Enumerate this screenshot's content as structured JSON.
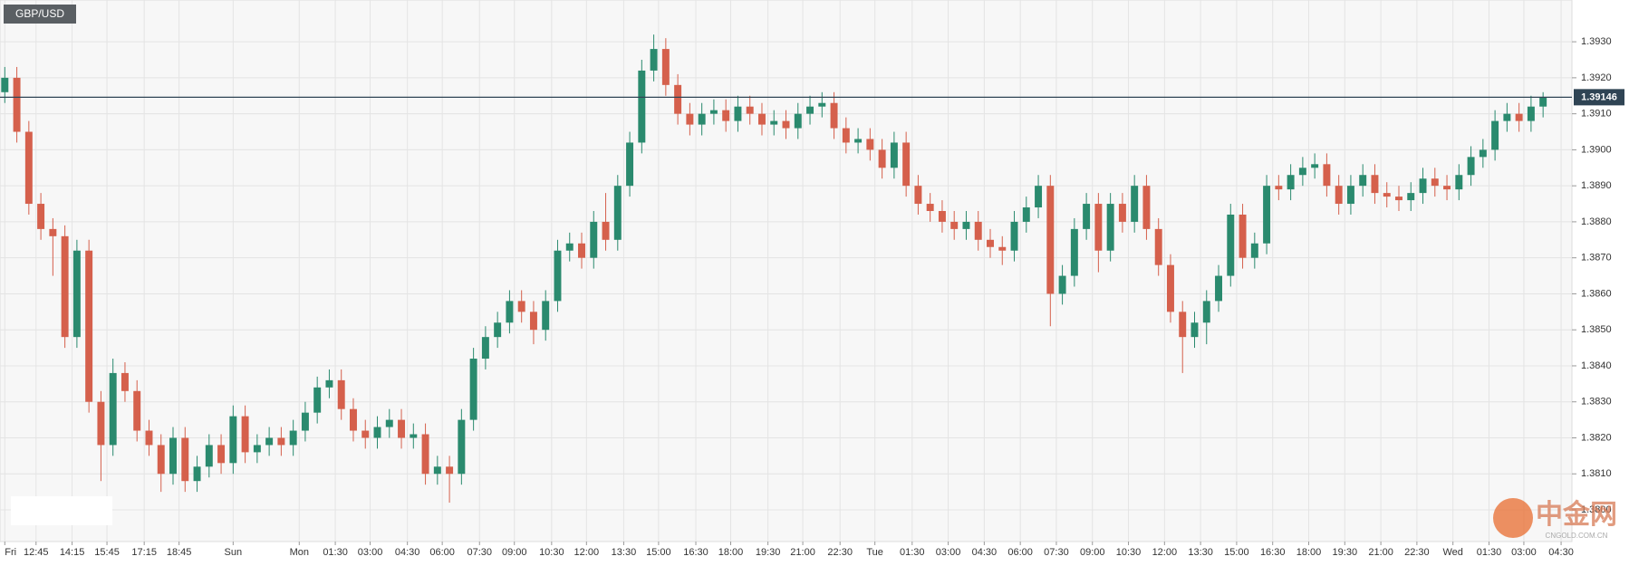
{
  "chart_data": {
    "type": "candlestick",
    "title": "GBP/USD",
    "watermark": {
      "name": "中金网",
      "sub": "CNGOLD.COM.CN"
    },
    "up_color": "#2a8a6e",
    "down_color": "#d5604c",
    "last_price": 1.39146,
    "last_price_color": "#2f4454",
    "grid": true,
    "ylim": [
      1.37912,
      1.39416
    ],
    "yticks": [
      {
        "value": 1.38,
        "label": "1.3800"
      },
      {
        "value": 1.381,
        "label": "1.3810"
      },
      {
        "value": 1.382,
        "label": "1.3820"
      },
      {
        "value": 1.383,
        "label": "1.3830"
      },
      {
        "value": 1.384,
        "label": "1.3840"
      },
      {
        "value": 1.385,
        "label": "1.3850"
      },
      {
        "value": 1.386,
        "label": "1.3860"
      },
      {
        "value": 1.387,
        "label": "1.3870"
      },
      {
        "value": 1.388,
        "label": "1.3880"
      },
      {
        "value": 1.389,
        "label": "1.3890"
      },
      {
        "value": 1.39,
        "label": "1.3900"
      },
      {
        "value": 1.391,
        "label": "1.3910"
      },
      {
        "value": 1.392,
        "label": "1.3920"
      },
      {
        "value": 1.393,
        "label": "1.3930"
      }
    ],
    "xlim": [
      -0.4,
      130.4
    ],
    "xticks": [
      {
        "value": 0,
        "label": "Fri"
      },
      {
        "value": 2.6,
        "label": "12:45"
      },
      {
        "value": 5.6,
        "label": "14:15"
      },
      {
        "value": 8.5,
        "label": "15:45"
      },
      {
        "value": 11.6,
        "label": "17:15"
      },
      {
        "value": 14.5,
        "label": "18:45"
      },
      {
        "value": 19,
        "label": "Sun"
      },
      {
        "value": 24.5,
        "label": "Mon"
      },
      {
        "value": 27.5,
        "label": "01:30"
      },
      {
        "value": 30.4,
        "label": "03:00"
      },
      {
        "value": 33.5,
        "label": "04:30"
      },
      {
        "value": 36.4,
        "label": "06:00"
      },
      {
        "value": 39.5,
        "label": "07:30"
      },
      {
        "value": 42.4,
        "label": "09:00"
      },
      {
        "value": 45.5,
        "label": "10:30"
      },
      {
        "value": 48.4,
        "label": "12:00"
      },
      {
        "value": 51.5,
        "label": "13:30"
      },
      {
        "value": 54.4,
        "label": "15:00"
      },
      {
        "value": 57.5,
        "label": "16:30"
      },
      {
        "value": 60.4,
        "label": "18:00"
      },
      {
        "value": 63.5,
        "label": "19:30"
      },
      {
        "value": 66.4,
        "label": "21:00"
      },
      {
        "value": 69.5,
        "label": "22:30"
      },
      {
        "value": 72.4,
        "label": "Tue"
      },
      {
        "value": 75.5,
        "label": "01:30"
      },
      {
        "value": 78.5,
        "label": "03:00"
      },
      {
        "value": 81.5,
        "label": "04:30"
      },
      {
        "value": 84.5,
        "label": "06:00"
      },
      {
        "value": 87.5,
        "label": "07:30"
      },
      {
        "value": 90.5,
        "label": "09:00"
      },
      {
        "value": 93.5,
        "label": "10:30"
      },
      {
        "value": 96.5,
        "label": "12:00"
      },
      {
        "value": 99.5,
        "label": "13:30"
      },
      {
        "value": 102.5,
        "label": "15:00"
      },
      {
        "value": 105.5,
        "label": "16:30"
      },
      {
        "value": 108.5,
        "label": "18:00"
      },
      {
        "value": 111.5,
        "label": "19:30"
      },
      {
        "value": 114.5,
        "label": "21:00"
      },
      {
        "value": 117.5,
        "label": "22:30"
      },
      {
        "value": 120.5,
        "label": "Wed"
      },
      {
        "value": 123.5,
        "label": "01:30"
      },
      {
        "value": 126.4,
        "label": "03:00"
      },
      {
        "value": 129.5,
        "label": "04:30"
      }
    ],
    "open": [
      1.3916,
      1.392,
      1.3905,
      1.3885,
      1.3878,
      1.3876,
      1.3848,
      1.3872,
      1.383,
      1.3818,
      1.3838,
      1.3833,
      1.3822,
      1.3818,
      1.381,
      1.382,
      1.3808,
      1.3812,
      1.3818,
      1.3813,
      1.3826,
      1.3816,
      1.3818,
      1.382,
      1.3818,
      1.3822,
      1.3827,
      1.3834,
      1.3836,
      1.3828,
      1.3822,
      1.382,
      1.3823,
      1.3825,
      1.382,
      1.3821,
      1.381,
      1.3812,
      1.381,
      1.3825,
      1.3842,
      1.3848,
      1.3852,
      1.3858,
      1.3855,
      1.385,
      1.3858,
      1.3872,
      1.3874,
      1.387,
      1.388,
      1.3875,
      1.389,
      1.3902,
      1.3922,
      1.3928,
      1.3918,
      1.391,
      1.3907,
      1.391,
      1.3911,
      1.3908,
      1.3912,
      1.391,
      1.3907,
      1.3908,
      1.3906,
      1.391,
      1.3912,
      1.3913,
      1.3906,
      1.3902,
      1.3903,
      1.39,
      1.3895,
      1.3902,
      1.389,
      1.3885,
      1.3883,
      1.388,
      1.3878,
      1.388,
      1.3875,
      1.3873,
      1.3872,
      1.388,
      1.3884,
      1.389,
      1.386,
      1.3865,
      1.3878,
      1.3885,
      1.3872,
      1.3885,
      1.388,
      1.389,
      1.3878,
      1.3868,
      1.3855,
      1.3848,
      1.3852,
      1.3858,
      1.3865,
      1.3882,
      1.387,
      1.3874,
      1.389,
      1.3889,
      1.3893,
      1.3895,
      1.3896,
      1.389,
      1.3885,
      1.389,
      1.3893,
      1.3888,
      1.3887,
      1.3886,
      1.3888,
      1.3892,
      1.389,
      1.3889,
      1.3893,
      1.3898,
      1.39,
      1.3908,
      1.391,
      1.3908,
      1.3912
    ],
    "high": [
      1.3923,
      1.3923,
      1.3908,
      1.3888,
      1.3881,
      1.3879,
      1.3875,
      1.3875,
      1.3833,
      1.3842,
      1.3841,
      1.3836,
      1.3825,
      1.3821,
      1.3823,
      1.3823,
      1.3815,
      1.3821,
      1.3821,
      1.3829,
      1.3829,
      1.3821,
      1.3823,
      1.3823,
      1.3825,
      1.383,
      1.3837,
      1.3839,
      1.3839,
      1.3831,
      1.3825,
      1.3826,
      1.3828,
      1.3828,
      1.3824,
      1.3824,
      1.3815,
      1.3815,
      1.3828,
      1.3845,
      1.3851,
      1.3855,
      1.3861,
      1.3861,
      1.3858,
      1.3861,
      1.3875,
      1.3877,
      1.3877,
      1.3883,
      1.3888,
      1.3893,
      1.3905,
      1.3925,
      1.3932,
      1.3931,
      1.3921,
      1.3913,
      1.3913,
      1.3914,
      1.3914,
      1.3915,
      1.3915,
      1.3913,
      1.3911,
      1.3911,
      1.3913,
      1.3915,
      1.3916,
      1.3916,
      1.3909,
      1.3906,
      1.3906,
      1.3903,
      1.3905,
      1.3905,
      1.3893,
      1.3888,
      1.3886,
      1.3883,
      1.3883,
      1.3883,
      1.3878,
      1.3876,
      1.3883,
      1.3887,
      1.3893,
      1.3893,
      1.3868,
      1.3881,
      1.3888,
      1.3888,
      1.3888,
      1.3888,
      1.3893,
      1.3893,
      1.3881,
      1.3871,
      1.3858,
      1.3855,
      1.3861,
      1.3868,
      1.3885,
      1.3885,
      1.3877,
      1.3893,
      1.3893,
      1.3896,
      1.3898,
      1.3899,
      1.3899,
      1.3893,
      1.3893,
      1.3896,
      1.3896,
      1.3891,
      1.389,
      1.3891,
      1.3895,
      1.3895,
      1.3893,
      1.3896,
      1.3901,
      1.3903,
      1.3911,
      1.3913,
      1.3913,
      1.3915,
      1.3916
    ],
    "low": [
      1.3913,
      1.3902,
      1.3882,
      1.3875,
      1.3865,
      1.3845,
      1.3845,
      1.3827,
      1.3808,
      1.3815,
      1.383,
      1.3819,
      1.3815,
      1.3805,
      1.3807,
      1.3805,
      1.3805,
      1.3809,
      1.381,
      1.381,
      1.3813,
      1.3813,
      1.3815,
      1.3815,
      1.3815,
      1.3819,
      1.3824,
      1.3831,
      1.3825,
      1.3819,
      1.3817,
      1.3817,
      1.382,
      1.3817,
      1.3817,
      1.3807,
      1.3807,
      1.3802,
      1.3807,
      1.3822,
      1.3839,
      1.3845,
      1.3849,
      1.3852,
      1.3846,
      1.3847,
      1.3855,
      1.3869,
      1.3867,
      1.3867,
      1.3872,
      1.3872,
      1.3887,
      1.3899,
      1.3919,
      1.3915,
      1.3907,
      1.3904,
      1.3904,
      1.3907,
      1.3905,
      1.3905,
      1.3907,
      1.3904,
      1.3904,
      1.3903,
      1.3903,
      1.3907,
      1.3909,
      1.3903,
      1.3899,
      1.3899,
      1.3897,
      1.3892,
      1.3892,
      1.3887,
      1.3882,
      1.388,
      1.3877,
      1.3875,
      1.3875,
      1.3872,
      1.387,
      1.3868,
      1.3869,
      1.3877,
      1.3881,
      1.3851,
      1.3857,
      1.3862,
      1.3875,
      1.3866,
      1.3869,
      1.3877,
      1.3877,
      1.3875,
      1.3865,
      1.3852,
      1.3838,
      1.3845,
      1.3846,
      1.3855,
      1.3862,
      1.3867,
      1.3867,
      1.3871,
      1.3886,
      1.3886,
      1.389,
      1.3892,
      1.3887,
      1.3882,
      1.3882,
      1.3887,
      1.3885,
      1.3884,
      1.3883,
      1.3883,
      1.3885,
      1.3887,
      1.3886,
      1.3886,
      1.389,
      1.3895,
      1.3897,
      1.3905,
      1.3905,
      1.3905,
      1.3909
    ],
    "close": [
      1.392,
      1.3905,
      1.3885,
      1.3878,
      1.3876,
      1.3848,
      1.3872,
      1.383,
      1.3818,
      1.3838,
      1.3833,
      1.3822,
      1.3818,
      1.381,
      1.382,
      1.3808,
      1.3812,
      1.3818,
      1.3813,
      1.3826,
      1.3816,
      1.3818,
      1.382,
      1.3818,
      1.3822,
      1.3827,
      1.3834,
      1.3836,
      1.3828,
      1.3822,
      1.382,
      1.3823,
      1.3825,
      1.382,
      1.3821,
      1.381,
      1.3812,
      1.381,
      1.3825,
      1.3842,
      1.3848,
      1.3852,
      1.3858,
      1.3855,
      1.385,
      1.3858,
      1.3872,
      1.3874,
      1.387,
      1.388,
      1.3875,
      1.389,
      1.3902,
      1.3922,
      1.3928,
      1.3918,
      1.391,
      1.3907,
      1.391,
      1.3911,
      1.3908,
      1.3912,
      1.391,
      1.3907,
      1.3908,
      1.3906,
      1.391,
      1.3912,
      1.3913,
      1.3906,
      1.3902,
      1.3903,
      1.39,
      1.3895,
      1.3902,
      1.389,
      1.3885,
      1.3883,
      1.388,
      1.3878,
      1.388,
      1.3875,
      1.3873,
      1.3872,
      1.388,
      1.3884,
      1.389,
      1.386,
      1.3865,
      1.3878,
      1.3885,
      1.3872,
      1.3885,
      1.388,
      1.389,
      1.3878,
      1.3868,
      1.3855,
      1.3848,
      1.3852,
      1.3858,
      1.3865,
      1.3882,
      1.387,
      1.3874,
      1.389,
      1.3889,
      1.3893,
      1.3895,
      1.3896,
      1.389,
      1.3885,
      1.389,
      1.3893,
      1.3888,
      1.3887,
      1.3886,
      1.3888,
      1.3892,
      1.389,
      1.3889,
      1.3893,
      1.3898,
      1.39,
      1.3908,
      1.391,
      1.3908,
      1.3912,
      1.39146
    ]
  }
}
